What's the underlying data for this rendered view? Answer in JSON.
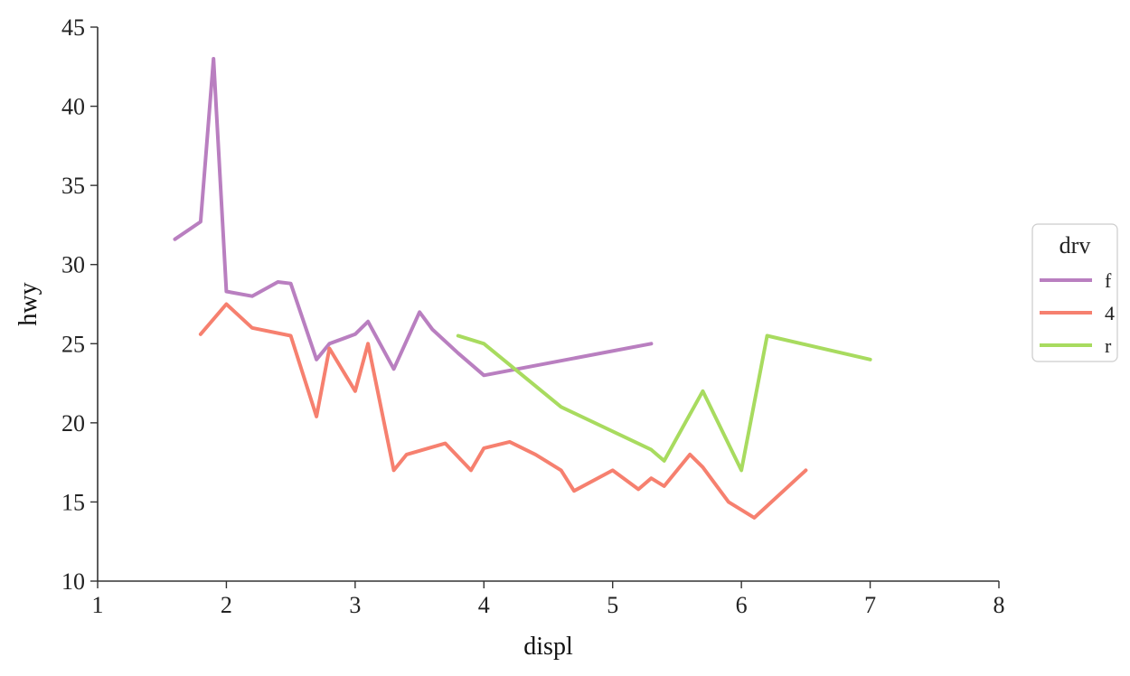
{
  "chart_data": {
    "type": "line",
    "xlabel": "displ",
    "ylabel": "hwy",
    "xlim": [
      1,
      8
    ],
    "ylim": [
      10,
      45
    ],
    "xticks": [
      1,
      2,
      3,
      4,
      5,
      6,
      7,
      8
    ],
    "yticks": [
      10,
      15,
      20,
      25,
      30,
      35,
      40,
      45
    ],
    "grid": false,
    "legend_title": "drv",
    "legend_placement": "right",
    "series": [
      {
        "name": "f",
        "color": "#b97fc0",
        "points": [
          [
            1.6,
            31.6
          ],
          [
            1.8,
            32.7
          ],
          [
            1.9,
            43.0
          ],
          [
            2.0,
            28.3
          ],
          [
            2.2,
            28.0
          ],
          [
            2.4,
            28.9
          ],
          [
            2.5,
            28.8
          ],
          [
            2.7,
            24.0
          ],
          [
            2.8,
            25.0
          ],
          [
            3.0,
            25.6
          ],
          [
            3.1,
            26.4
          ],
          [
            3.3,
            23.4
          ],
          [
            3.5,
            27.0
          ],
          [
            3.6,
            25.9
          ],
          [
            3.8,
            24.4
          ],
          [
            4.0,
            23.0
          ],
          [
            5.3,
            25.0
          ]
        ]
      },
      {
        "name": "4",
        "color": "#f6806f",
        "points": [
          [
            1.8,
            25.6
          ],
          [
            2.0,
            27.5
          ],
          [
            2.2,
            26.0
          ],
          [
            2.5,
            25.5
          ],
          [
            2.7,
            20.4
          ],
          [
            2.8,
            24.7
          ],
          [
            3.0,
            22.0
          ],
          [
            3.1,
            25.0
          ],
          [
            3.3,
            17.0
          ],
          [
            3.4,
            18.0
          ],
          [
            3.7,
            18.7
          ],
          [
            3.9,
            17.0
          ],
          [
            4.0,
            18.4
          ],
          [
            4.2,
            18.8
          ],
          [
            4.4,
            18.0
          ],
          [
            4.6,
            17.0
          ],
          [
            4.7,
            15.7
          ],
          [
            5.0,
            17.0
          ],
          [
            5.2,
            15.8
          ],
          [
            5.3,
            16.5
          ],
          [
            5.4,
            16.0
          ],
          [
            5.6,
            18.0
          ],
          [
            5.7,
            17.2
          ],
          [
            5.9,
            15.0
          ],
          [
            6.1,
            14.0
          ],
          [
            6.5,
            17.0
          ]
        ]
      },
      {
        "name": "r",
        "color": "#a8db5f",
        "points": [
          [
            3.8,
            25.5
          ],
          [
            4.0,
            25.0
          ],
          [
            4.6,
            21.0
          ],
          [
            5.3,
            18.3
          ],
          [
            5.4,
            17.6
          ],
          [
            5.7,
            22.0
          ],
          [
            6.0,
            17.0
          ],
          [
            6.2,
            25.5
          ],
          [
            7.0,
            24.0
          ]
        ]
      }
    ]
  }
}
